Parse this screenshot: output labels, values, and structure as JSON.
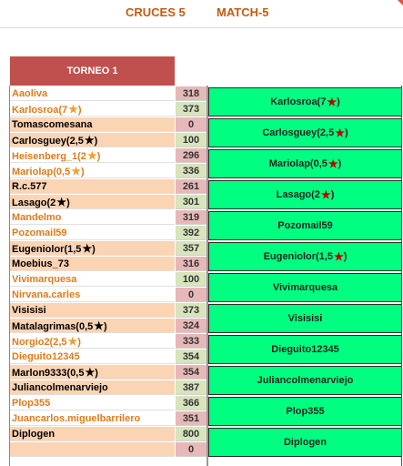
{
  "header": {
    "title": "CRUCES 5",
    "match": "MATCH-5"
  },
  "table": {
    "heading": "TORNEO 1"
  },
  "matches": [
    {
      "p1": {
        "name": "Aaoliva",
        "score": "318"
      },
      "p2": {
        "name": "Karlosroa(7",
        "score": "373"
      },
      "winner": "Karlosroa(7"
    },
    {
      "p1": {
        "name": "Tomascomesana",
        "score": "0"
      },
      "p2": {
        "name": "Carlosguey(2,5",
        "score": "100"
      },
      "winner": "Carlosguey(2,5"
    },
    {
      "p1": {
        "name": "Heisenberg_1(2",
        "score": "296"
      },
      "p2": {
        "name": "Mariolap(0,5",
        "score": "336"
      },
      "winner": "Mariolap(0,5"
    },
    {
      "p1": {
        "name": "R.c.577",
        "score": "261"
      },
      "p2": {
        "name": "Lasago(2",
        "score": "301"
      },
      "winner": "Lasago(2"
    },
    {
      "p1": {
        "name": "Mandelmo",
        "score": "319"
      },
      "p2": {
        "name": "Pozomail59",
        "score": "392"
      },
      "winner": "Pozomail59"
    },
    {
      "p1": {
        "name": "Eugeniolor(1,5",
        "score": "357"
      },
      "p2": {
        "name": "Moebius_73",
        "score": "316"
      },
      "winner": "Eugeniolor(1,5"
    },
    {
      "p1": {
        "name": "Vivimarquesa",
        "score": "100"
      },
      "p2": {
        "name": "Nirvana.carles",
        "score": "0"
      },
      "winner": "Vivimarquesa"
    },
    {
      "p1": {
        "name": "Visisisi",
        "score": "373"
      },
      "p2": {
        "name": "Matalagrimas(0,5",
        "score": "324"
      },
      "winner": "Visisisi"
    },
    {
      "p1": {
        "name": "Norgio2(2,5",
        "score": "333"
      },
      "p2": {
        "name": "Dieguito12345",
        "score": "354"
      },
      "winner": "Dieguito12345"
    },
    {
      "p1": {
        "name": "Marlon9333(0,5",
        "score": "354"
      },
      "p2": {
        "name": "Juliancolmenarviejo",
        "score": "387"
      },
      "winner": "Juliancolmenarviejo"
    },
    {
      "p1": {
        "name": "Plop355",
        "score": "366"
      },
      "p2": {
        "name": "Juancarlos.miguelbarrilero",
        "score": "351"
      },
      "winner": "Plop355"
    },
    {
      "p1": {
        "name": "Diplogen",
        "score": "800"
      },
      "p2": {
        "name": "",
        "score": "0"
      },
      "winner": "Diplogen"
    }
  ],
  "suffix": ")",
  "star": "★",
  "colors": {
    "winner_bg": "#00ff80",
    "loser_score": "#e6b9b8",
    "winner_score": "#d7e4bc",
    "header_text": "#c55a11"
  }
}
